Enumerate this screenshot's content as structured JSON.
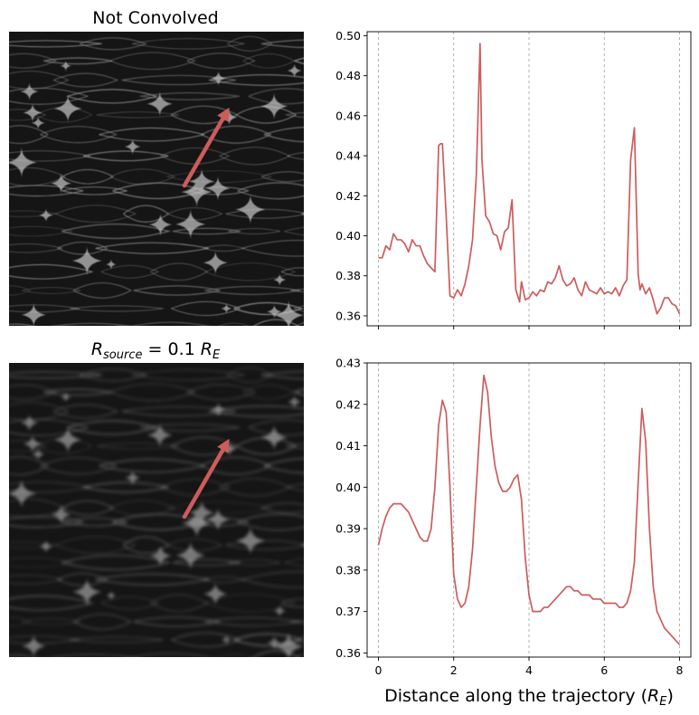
{
  "panels": {
    "top_title": "Not Convolved",
    "bottom_title": {
      "main": "R",
      "sub": "source",
      "mid": " = 0.1 ",
      "unit_main": "R",
      "unit_sub": "E"
    }
  },
  "map_colors": {
    "background": "#151515",
    "caustic": "#c8c8c8",
    "arrow": "#cd5c5c"
  },
  "chart_data": [
    {
      "type": "line",
      "title": "Not Convolved",
      "xlabel": "",
      "ylabel": "",
      "xlim": [
        -0.3,
        8.3
      ],
      "ylim": [
        0.355,
        0.502
      ],
      "xticks": [
        0,
        2,
        4,
        6,
        8
      ],
      "xtick_labels_shown": false,
      "yticks": [
        0.36,
        0.38,
        0.4,
        0.42,
        0.44,
        0.46,
        0.48,
        0.5
      ],
      "ytick_labels": [
        "0.36",
        "0.38",
        "0.40",
        "0.42",
        "0.44",
        "0.46",
        "0.48",
        "0.50"
      ],
      "vlines": [
        0,
        2,
        4,
        6,
        8
      ],
      "color": "#cd5c5c",
      "series": [
        {
          "x": [
            0.0,
            0.1,
            0.2,
            0.3,
            0.4,
            0.5,
            0.6,
            0.7,
            0.8,
            0.9,
            1.0,
            1.1,
            1.2,
            1.3,
            1.4,
            1.5,
            1.6,
            1.65,
            1.7,
            1.8,
            1.9,
            2.0,
            2.1,
            2.2,
            2.3,
            2.4,
            2.5,
            2.6,
            2.7,
            2.75,
            2.85,
            2.95,
            3.05,
            3.15,
            3.25,
            3.35,
            3.45,
            3.55,
            3.65,
            3.75,
            3.8,
            3.9,
            4.0,
            4.1,
            4.2,
            4.3,
            4.4,
            4.5,
            4.6,
            4.7,
            4.8,
            4.9,
            5.0,
            5.1,
            5.2,
            5.3,
            5.4,
            5.5,
            5.6,
            5.7,
            5.8,
            5.9,
            6.0,
            6.1,
            6.2,
            6.3,
            6.4,
            6.5,
            6.6,
            6.7,
            6.8,
            6.9,
            6.95,
            7.0,
            7.1,
            7.2,
            7.3,
            7.4,
            7.5,
            7.6,
            7.7,
            7.8,
            7.9,
            8.0
          ],
          "y": [
            0.389,
            0.389,
            0.395,
            0.393,
            0.401,
            0.398,
            0.398,
            0.396,
            0.392,
            0.398,
            0.395,
            0.395,
            0.39,
            0.386,
            0.384,
            0.382,
            0.445,
            0.446,
            0.446,
            0.41,
            0.37,
            0.369,
            0.373,
            0.37,
            0.376,
            0.385,
            0.398,
            0.43,
            0.496,
            0.438,
            0.41,
            0.407,
            0.401,
            0.4,
            0.393,
            0.402,
            0.404,
            0.418,
            0.373,
            0.367,
            0.377,
            0.368,
            0.369,
            0.372,
            0.37,
            0.373,
            0.372,
            0.377,
            0.376,
            0.379,
            0.385,
            0.378,
            0.375,
            0.376,
            0.379,
            0.373,
            0.37,
            0.377,
            0.373,
            0.372,
            0.371,
            0.374,
            0.371,
            0.372,
            0.371,
            0.374,
            0.37,
            0.375,
            0.378,
            0.438,
            0.454,
            0.381,
            0.373,
            0.376,
            0.371,
            0.374,
            0.368,
            0.361,
            0.364,
            0.369,
            0.369,
            0.366,
            0.365,
            0.361
          ]
        }
      ]
    },
    {
      "type": "line",
      "title": "R_source = 0.1 R_E",
      "xlabel": "Distance along the trajectory (R_E)",
      "ylabel": "",
      "xlim": [
        -0.3,
        8.3
      ],
      "ylim": [
        0.359,
        0.43
      ],
      "xticks": [
        0,
        2,
        4,
        6,
        8
      ],
      "xtick_labels": [
        "0",
        "2",
        "4",
        "6",
        "8"
      ],
      "yticks": [
        0.36,
        0.37,
        0.38,
        0.39,
        0.4,
        0.41,
        0.42,
        0.43
      ],
      "ytick_labels": [
        "0.36",
        "0.37",
        "0.38",
        "0.39",
        "0.40",
        "0.41",
        "0.42",
        "0.43"
      ],
      "vlines": [
        0,
        2,
        4,
        6,
        8
      ],
      "color": "#cd5c5c",
      "series": [
        {
          "x": [
            0.0,
            0.1,
            0.2,
            0.3,
            0.4,
            0.5,
            0.6,
            0.7,
            0.8,
            0.9,
            1.0,
            1.1,
            1.2,
            1.3,
            1.4,
            1.5,
            1.6,
            1.7,
            1.8,
            1.9,
            2.0,
            2.1,
            2.2,
            2.3,
            2.4,
            2.5,
            2.6,
            2.7,
            2.8,
            2.9,
            3.0,
            3.1,
            3.2,
            3.3,
            3.4,
            3.5,
            3.6,
            3.7,
            3.8,
            3.9,
            4.0,
            4.1,
            4.2,
            4.3,
            4.4,
            4.5,
            4.6,
            4.7,
            4.8,
            4.9,
            5.0,
            5.1,
            5.2,
            5.3,
            5.4,
            5.5,
            5.6,
            5.7,
            5.8,
            5.9,
            6.0,
            6.1,
            6.2,
            6.3,
            6.4,
            6.5,
            6.6,
            6.7,
            6.8,
            6.9,
            7.0,
            7.1,
            7.2,
            7.3,
            7.4,
            7.5,
            7.6,
            7.7,
            7.8,
            7.9,
            8.0
          ],
          "y": [
            0.386,
            0.39,
            0.393,
            0.395,
            0.396,
            0.396,
            0.396,
            0.395,
            0.394,
            0.392,
            0.39,
            0.388,
            0.387,
            0.387,
            0.39,
            0.4,
            0.415,
            0.421,
            0.418,
            0.4,
            0.379,
            0.373,
            0.371,
            0.372,
            0.376,
            0.385,
            0.4,
            0.415,
            0.427,
            0.423,
            0.412,
            0.405,
            0.401,
            0.399,
            0.399,
            0.4,
            0.402,
            0.403,
            0.397,
            0.383,
            0.374,
            0.37,
            0.37,
            0.37,
            0.371,
            0.371,
            0.372,
            0.373,
            0.374,
            0.375,
            0.376,
            0.376,
            0.375,
            0.375,
            0.374,
            0.374,
            0.374,
            0.373,
            0.373,
            0.373,
            0.372,
            0.372,
            0.372,
            0.372,
            0.371,
            0.371,
            0.372,
            0.375,
            0.382,
            0.401,
            0.419,
            0.411,
            0.39,
            0.376,
            0.37,
            0.368,
            0.366,
            0.365,
            0.364,
            0.363,
            0.362
          ]
        }
      ]
    }
  ]
}
